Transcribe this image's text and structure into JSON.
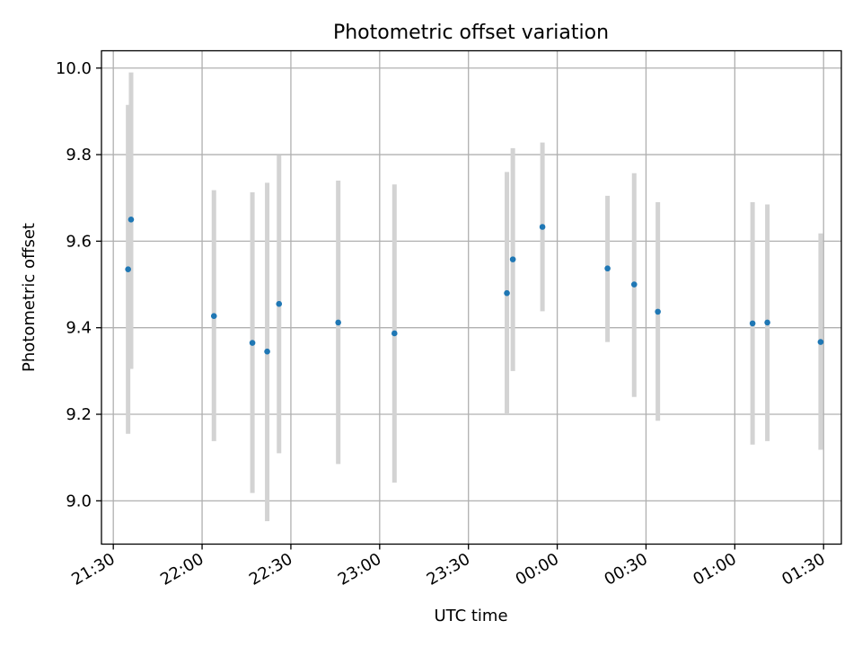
{
  "chart_data": {
    "type": "scatter",
    "title": "Photometric offset variation",
    "xlabel": "UTC time",
    "ylabel": "Photometric offset",
    "xlim": [
      "21:26",
      "01:36"
    ],
    "ylim": [
      8.9,
      10.04
    ],
    "grid": true,
    "x_ticks": [
      "21:30",
      "22:00",
      "22:30",
      "23:00",
      "23:30",
      "00:00",
      "00:30",
      "01:00",
      "01:30"
    ],
    "y_ticks": [
      "9.0",
      "9.2",
      "9.4",
      "9.6",
      "9.8",
      "10.0"
    ],
    "colors": {
      "marker": "#1f77b4",
      "errorbar": "#d3d3d3",
      "grid": "#b0b0b0",
      "axes": "#000000"
    },
    "series": [
      {
        "points": [
          {
            "x": "21:35",
            "y": 9.535,
            "yerr": [
              9.155,
              9.915
            ]
          },
          {
            "x": "21:36",
            "y": 9.65,
            "yerr": [
              9.305,
              9.99
            ]
          },
          {
            "x": "22:04",
            "y": 9.427,
            "yerr": [
              9.138,
              9.718
            ]
          },
          {
            "x": "22:17",
            "y": 9.365,
            "yerr": [
              9.018,
              9.713
            ]
          },
          {
            "x": "22:22",
            "y": 9.345,
            "yerr": [
              8.953,
              9.735
            ]
          },
          {
            "x": "22:26",
            "y": 9.455,
            "yerr": [
              9.11,
              9.798
            ]
          },
          {
            "x": "22:46",
            "y": 9.412,
            "yerr": [
              9.085,
              9.74
            ]
          },
          {
            "x": "23:05",
            "y": 9.387,
            "yerr": [
              9.042,
              9.731
            ]
          },
          {
            "x": "23:43",
            "y": 9.48,
            "yerr": [
              9.2,
              9.76
            ]
          },
          {
            "x": "23:45",
            "y": 9.558,
            "yerr": [
              9.3,
              9.815
            ]
          },
          {
            "x": "23:55",
            "y": 9.633,
            "yerr": [
              9.438,
              9.828
            ]
          },
          {
            "x": "00:17",
            "y": 9.537,
            "yerr": [
              9.367,
              9.705
            ]
          },
          {
            "x": "00:26",
            "y": 9.5,
            "yerr": [
              9.24,
              9.757
            ]
          },
          {
            "x": "00:34",
            "y": 9.437,
            "yerr": [
              9.185,
              9.69
            ]
          },
          {
            "x": "01:06",
            "y": 9.41,
            "yerr": [
              9.13,
              9.69
            ]
          },
          {
            "x": "01:11",
            "y": 9.412,
            "yerr": [
              9.138,
              9.685
            ]
          },
          {
            "x": "01:29",
            "y": 9.367,
            "yerr": [
              9.118,
              9.618
            ]
          }
        ]
      }
    ]
  }
}
